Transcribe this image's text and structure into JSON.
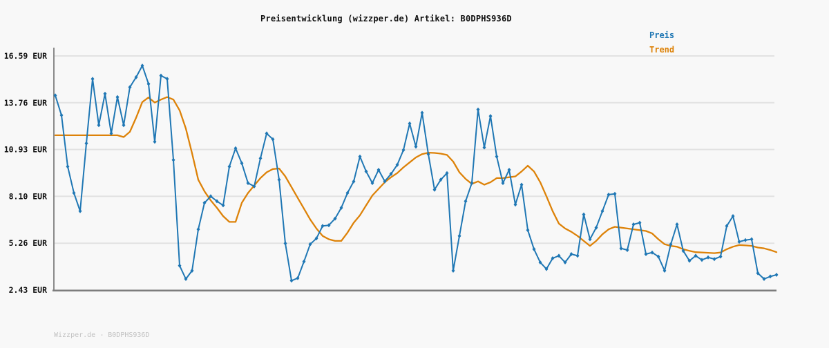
{
  "page": {
    "title": "Preisentwicklung (wizzper.de) Artikel: B0DPHS936D",
    "footer": "Wizzper.de - B0DPHS936D"
  },
  "legend": {
    "items": [
      {
        "label": "Preis",
        "color": "#1f77b4"
      },
      {
        "label": "Trend",
        "color": "#dd8208"
      }
    ]
  },
  "colors": {
    "background": "#f8f8f8",
    "gridline": "#e2e2e2",
    "axis": "#7d7d7d",
    "tick_label": "#111111",
    "price": "#1f77b4",
    "trend": "#dd8208",
    "footer_text": "#c2c2c2"
  },
  "chart_data": {
    "type": "line",
    "title": "Preisentwicklung (wizzper.de) Artikel: B0DPHS936D",
    "ylabel": "EUR",
    "ylim": [
      2.43,
      16.59
    ],
    "grid": true,
    "legend_position": "top-right",
    "x_axis_labels_shown": false,
    "y_ticks": [
      {
        "value": 16.59,
        "label": "16.59 EUR"
      },
      {
        "value": 13.76,
        "label": "13.76 EUR"
      },
      {
        "value": 10.93,
        "label": "10.93 EUR"
      },
      {
        "value": 8.1,
        "label": "8.10 EUR"
      },
      {
        "value": 5.26,
        "label": "5.26 EUR"
      },
      {
        "value": 2.43,
        "label": "2.43 EUR"
      }
    ],
    "series": [
      {
        "name": "Preis",
        "color": "#1f77b4",
        "marker": "diamond",
        "values": [
          14.2,
          13.0,
          9.9,
          8.3,
          7.2,
          11.3,
          15.2,
          12.4,
          14.3,
          11.9,
          14.1,
          12.4,
          14.7,
          15.3,
          16.0,
          14.9,
          11.4,
          15.4,
          15.2,
          10.3,
          3.9,
          3.1,
          3.6,
          6.1,
          7.7,
          8.1,
          7.8,
          7.55,
          9.9,
          11.0,
          10.1,
          8.9,
          8.7,
          10.4,
          11.9,
          11.55,
          9.1,
          5.25,
          3.0,
          3.15,
          4.15,
          5.2,
          5.55,
          6.3,
          6.35,
          6.75,
          7.4,
          8.3,
          9.0,
          10.5,
          9.6,
          8.9,
          9.7,
          9.0,
          9.45,
          10.0,
          10.9,
          12.5,
          11.1,
          13.15,
          10.65,
          8.5,
          9.1,
          9.5,
          3.6,
          5.7,
          7.8,
          8.9,
          13.35,
          11.05,
          12.95,
          10.5,
          8.9,
          9.7,
          7.6,
          8.8,
          6.05,
          4.9,
          4.1,
          3.7,
          4.35,
          4.5,
          4.1,
          4.6,
          4.5,
          7.0,
          5.5,
          6.2,
          7.2,
          8.2,
          8.25,
          4.95,
          4.85,
          6.4,
          6.5,
          4.6,
          4.7,
          4.45,
          3.6,
          5.2,
          6.4,
          4.8,
          4.2,
          4.5,
          4.25,
          4.4,
          4.3,
          4.45,
          6.3,
          6.9,
          5.35,
          5.45,
          5.5,
          3.45,
          3.1,
          3.25,
          3.35
        ]
      },
      {
        "name": "Trend",
        "color": "#dd8208",
        "marker": "none",
        "values": [
          11.79,
          11.79,
          11.79,
          11.79,
          11.79,
          11.79,
          11.79,
          11.79,
          11.79,
          11.79,
          11.79,
          11.68,
          12.0,
          12.85,
          13.8,
          14.08,
          13.77,
          13.95,
          14.1,
          13.95,
          13.3,
          12.2,
          10.7,
          9.1,
          8.4,
          7.85,
          7.4,
          6.9,
          6.55,
          6.55,
          7.7,
          8.3,
          8.75,
          9.2,
          9.55,
          9.75,
          9.78,
          9.3,
          8.65,
          8.0,
          7.35,
          6.7,
          6.15,
          5.7,
          5.5,
          5.4,
          5.4,
          5.9,
          6.5,
          6.95,
          7.55,
          8.15,
          8.55,
          8.95,
          9.25,
          9.5,
          9.85,
          10.15,
          10.45,
          10.65,
          10.74,
          10.72,
          10.68,
          10.6,
          10.2,
          9.55,
          9.15,
          8.85,
          9.0,
          8.8,
          8.95,
          9.2,
          9.2,
          9.25,
          9.3,
          9.6,
          9.95,
          9.6,
          8.95,
          8.1,
          7.2,
          6.45,
          6.15,
          5.95,
          5.7,
          5.4,
          5.1,
          5.4,
          5.8,
          6.1,
          6.25,
          6.2,
          6.15,
          6.1,
          6.05,
          6.0,
          5.85,
          5.5,
          5.2,
          5.1,
          5.05,
          4.9,
          4.8,
          4.72,
          4.7,
          4.68,
          4.66,
          4.7,
          4.9,
          5.05,
          5.15,
          5.13,
          5.1,
          5.0,
          4.95,
          4.85,
          4.72
        ]
      }
    ]
  }
}
